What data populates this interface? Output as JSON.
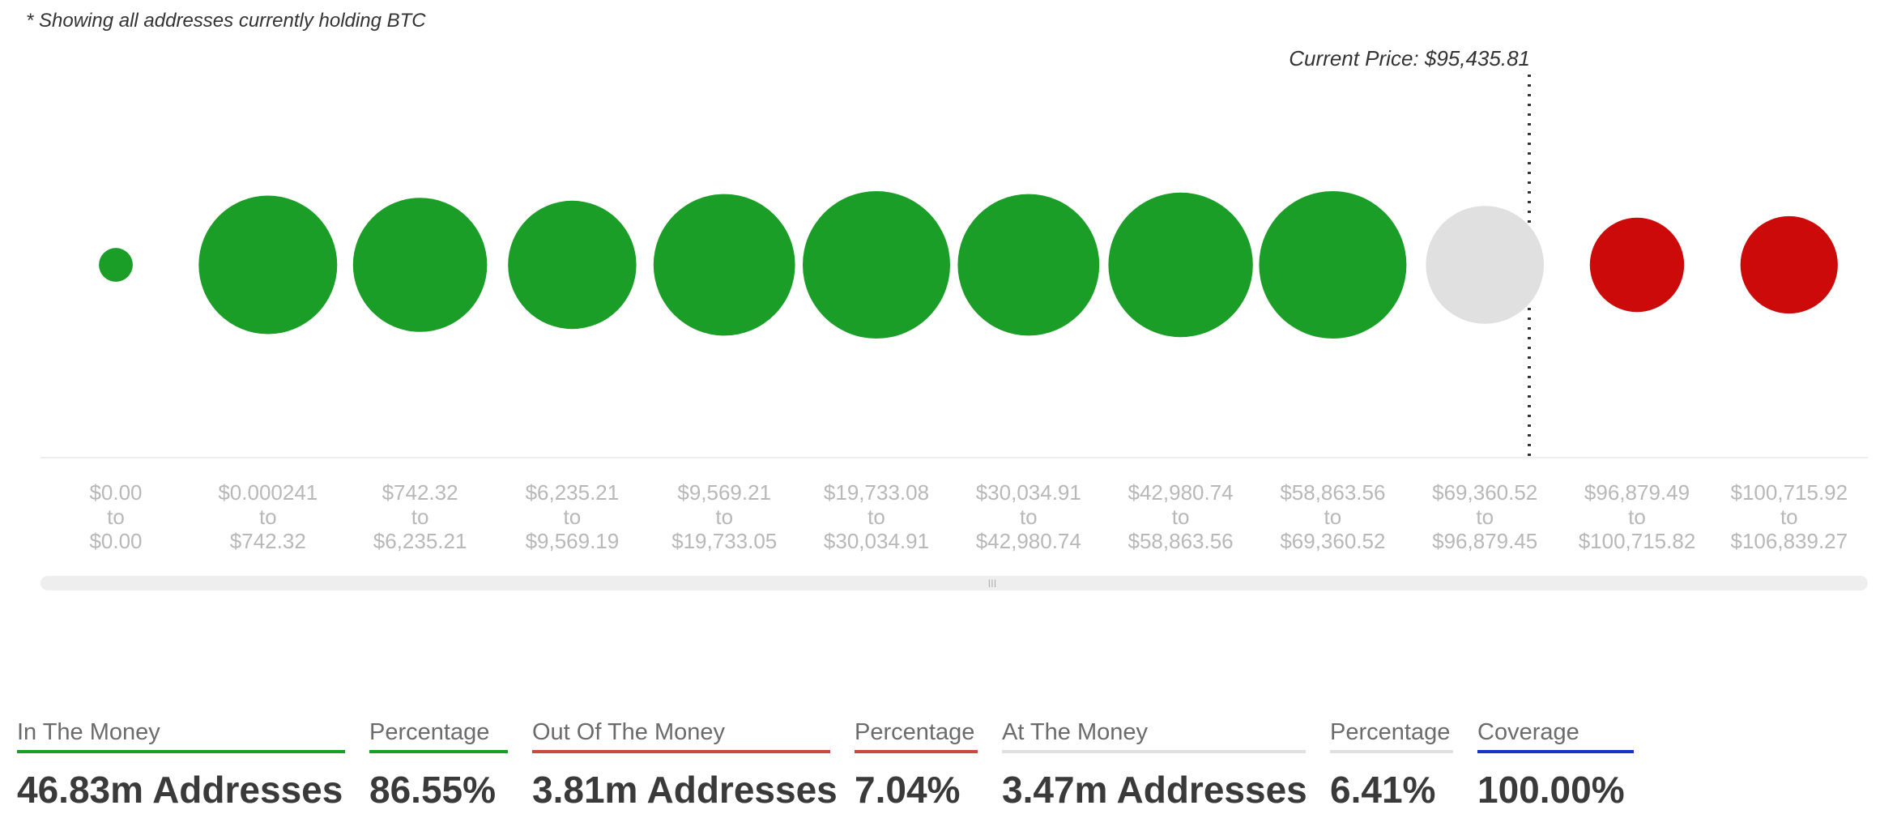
{
  "note": "* Showing all addresses currently holding BTC",
  "chart_data": {
    "type": "bubble",
    "current_price_label": "Current Price: $95,435.81",
    "current_price": 95435.81,
    "colors": {
      "in": "#1a9e27",
      "at": "#e0e0e0",
      "out": "#cc0a0a"
    },
    "buckets": [
      {
        "from": "$0.00",
        "to": "$0.00",
        "status": "in",
        "size": 0.23
      },
      {
        "from": "$0.000241",
        "to": "$742.32",
        "status": "in",
        "size": 0.94
      },
      {
        "from": "$742.32",
        "to": "$6,235.21",
        "status": "in",
        "size": 0.91
      },
      {
        "from": "$6,235.21",
        "to": "$9,569.19",
        "status": "in",
        "size": 0.87
      },
      {
        "from": "$9,569.21",
        "to": "$19,733.05",
        "status": "in",
        "size": 0.96
      },
      {
        "from": "$19,733.08",
        "to": "$30,034.91",
        "status": "in",
        "size": 1.0
      },
      {
        "from": "$30,034.91",
        "to": "$42,980.74",
        "status": "in",
        "size": 0.96
      },
      {
        "from": "$42,980.74",
        "to": "$58,863.56",
        "status": "in",
        "size": 0.98
      },
      {
        "from": "$58,863.56",
        "to": "$69,360.52",
        "status": "in",
        "size": 1.0
      },
      {
        "from": "$69,360.52",
        "to": "$96,879.45",
        "status": "at",
        "size": 0.8
      },
      {
        "from": "$96,879.49",
        "to": "$100,715.82",
        "status": "out",
        "size": 0.64
      },
      {
        "from": "$100,715.92",
        "to": "$106,839.27",
        "status": "out",
        "size": 0.66
      }
    ],
    "connector_word": "to"
  },
  "stats": {
    "in_money": {
      "label": "In The Money",
      "value": "46.83m Addresses",
      "color": "#1a9e27"
    },
    "in_pct": {
      "label": "Percentage",
      "value": "86.55%",
      "color": "#1a9e27"
    },
    "out_money": {
      "label": "Out Of The Money",
      "value": "3.81m Addresses",
      "color": "#c94a3c"
    },
    "out_pct": {
      "label": "Percentage",
      "value": "7.04%",
      "color": "#c94a3c"
    },
    "at_money": {
      "label": "At The Money",
      "value": "3.47m Addresses",
      "color": "#e0e0e0"
    },
    "at_pct": {
      "label": "Percentage",
      "value": "6.41%",
      "color": "#e0e0e0"
    },
    "coverage": {
      "label": "Coverage",
      "value": "100.00%",
      "color": "#1534c9"
    }
  }
}
